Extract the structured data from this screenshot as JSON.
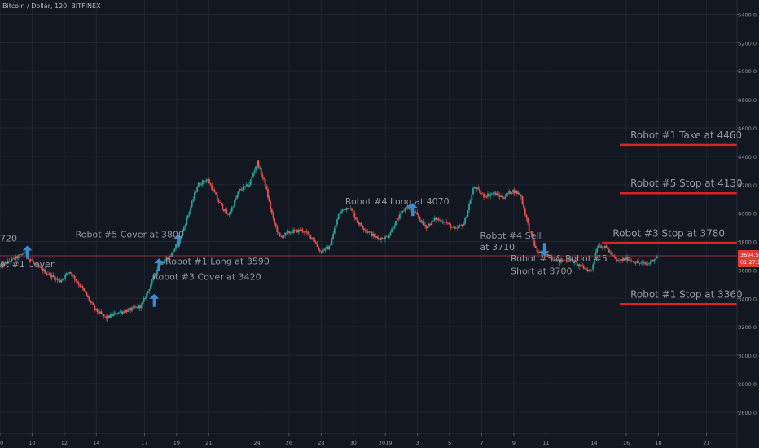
{
  "header": {
    "title": "Bitcoin / Dollar, 120, BITFINEX"
  },
  "colors": {
    "background": "#131722",
    "grid": "#1f2433",
    "up": "#26a69a",
    "down": "#ef5350",
    "level_line": "#e02020",
    "arrow": "#3d8bd0",
    "annotation": "#9598a1",
    "axis_text": "#9598a1"
  },
  "chart_data": {
    "type": "candlestick",
    "ylim": [
      2450,
      5500
    ],
    "y_ticks": [
      "5400.0",
      "5200.0",
      "5000.0",
      "4800.0",
      "4600.0",
      "4400.0",
      "4200.0",
      "4000.0",
      "3800.0",
      "3600.0",
      "3400.0",
      "3200.0",
      "3000.0",
      "2800.0",
      "2600.0"
    ],
    "y_tick_values": [
      5400,
      5200,
      5000,
      4800,
      4600,
      4400,
      4200,
      4000,
      3800,
      3600,
      3400,
      3200,
      3000,
      2800,
      2600
    ],
    "x_ticks": [
      "00",
      "10",
      "12",
      "14",
      "17",
      "19",
      "21",
      "24",
      "26",
      "28",
      "30",
      "2019",
      "3",
      "5",
      "7",
      "9",
      "11",
      "14",
      "16",
      "18",
      "21"
    ],
    "x_tick_positions": [
      8,
      10,
      12,
      14,
      17,
      19,
      21,
      24,
      26,
      28,
      30,
      32,
      34,
      36,
      38,
      40,
      42,
      45,
      47,
      49,
      52
    ],
    "x_range": [
      8,
      53.9
    ],
    "price_path": [
      [
        8,
        3620
      ],
      [
        9,
        3680
      ],
      [
        9.6,
        3720
      ],
      [
        10.2,
        3640
      ],
      [
        11,
        3580
      ],
      [
        11.8,
        3520
      ],
      [
        12.4,
        3590
      ],
      [
        13.2,
        3470
      ],
      [
        14,
        3320
      ],
      [
        14.7,
        3260
      ],
      [
        15.4,
        3300
      ],
      [
        16.2,
        3320
      ],
      [
        16.9,
        3350
      ],
      [
        17.4,
        3480
      ],
      [
        18,
        3640
      ],
      [
        18.7,
        3700
      ],
      [
        19.3,
        3820
      ],
      [
        19.8,
        3990
      ],
      [
        20.4,
        4200
      ],
      [
        21,
        4240
      ],
      [
        21.7,
        4080
      ],
      [
        22.3,
        3980
      ],
      [
        23,
        4160
      ],
      [
        23.6,
        4200
      ],
      [
        24.1,
        4360
      ],
      [
        24.6,
        4200
      ],
      [
        25.1,
        3950
      ],
      [
        25.5,
        3830
      ],
      [
        26.2,
        3870
      ],
      [
        26.9,
        3880
      ],
      [
        27.6,
        3820
      ],
      [
        28,
        3730
      ],
      [
        28.6,
        3760
      ],
      [
        29.2,
        4000
      ],
      [
        29.8,
        4050
      ],
      [
        30.4,
        3930
      ],
      [
        31,
        3870
      ],
      [
        31.6,
        3820
      ],
      [
        32.2,
        3830
      ],
      [
        32.8,
        3950
      ],
      [
        33.4,
        4050
      ],
      [
        34,
        3990
      ],
      [
        34.6,
        3900
      ],
      [
        35.2,
        3960
      ],
      [
        35.8,
        3940
      ],
      [
        36.4,
        3880
      ],
      [
        37,
        3930
      ],
      [
        37.6,
        4190
      ],
      [
        38.2,
        4120
      ],
      [
        38.8,
        4140
      ],
      [
        39.4,
        4110
      ],
      [
        40,
        4160
      ],
      [
        40.5,
        4130
      ],
      [
        41,
        3900
      ],
      [
        41.5,
        3730
      ],
      [
        42.2,
        3700
      ],
      [
        42.9,
        3660
      ],
      [
        43.6,
        3670
      ],
      [
        44.3,
        3620
      ],
      [
        44.9,
        3590
      ],
      [
        45.3,
        3780
      ],
      [
        45.9,
        3750
      ],
      [
        46.5,
        3660
      ],
      [
        47.1,
        3680
      ],
      [
        47.8,
        3650
      ],
      [
        48.4,
        3640
      ],
      [
        49,
        3694
      ]
    ],
    "current_price": {
      "value": 3694,
      "label": "3694.5",
      "countdown": "01:27:16"
    },
    "arrows": [
      {
        "x": 9.7,
        "price": 3680,
        "direction": "up"
      },
      {
        "x": 17.6,
        "price": 3340,
        "direction": "up"
      },
      {
        "x": 17.9,
        "price": 3590,
        "direction": "up"
      },
      {
        "x": 19.1,
        "price": 3760,
        "direction": "up"
      },
      {
        "x": 33.7,
        "price": 3980,
        "direction": "up"
      },
      {
        "x": 41.9,
        "price": 3790,
        "direction": "down"
      }
    ],
    "annotations": [
      {
        "text": "ot #1 Cover",
        "x": 8.0,
        "price": 3620,
        "size": 11
      },
      {
        "text": "720",
        "x": 8.0,
        "price": 3800,
        "size": 11
      },
      {
        "text": "Robot #5 Cover at 3800",
        "x": 12.7,
        "price": 3830,
        "size": 11
      },
      {
        "text": "Robot #1 Long at 3590",
        "x": 18.3,
        "price": 3640,
        "size": 11
      },
      {
        "text": "Robot #3 Cover at 3420",
        "x": 17.5,
        "price": 3530,
        "size": 11
      },
      {
        "text": "Robot #4 Long at 4070",
        "x": 29.5,
        "price": 4060,
        "size": 11
      },
      {
        "text": "Robot #4 Sell",
        "x": 37.9,
        "price": 3820,
        "size": 11
      },
      {
        "text": "at 3710",
        "x": 37.9,
        "price": 3740,
        "size": 11
      },
      {
        "text": "Robot #3 & Robot #5",
        "x": 39.8,
        "price": 3660,
        "size": 11
      },
      {
        "text": "Short at 3700",
        "x": 39.8,
        "price": 3570,
        "size": 11
      }
    ],
    "levels": [
      {
        "label": "Robot #1 Take at 4460",
        "price": 4480,
        "x_start": 46.6,
        "style": "thick"
      },
      {
        "label": "Robot #5 Stop at 4130",
        "price": 4140,
        "x_start": 46.6,
        "style": "thick"
      },
      {
        "label": "Robot #3 Stop at 3780",
        "price": 3790,
        "x_start": 45.5,
        "style": "thick"
      },
      {
        "label": "Robot #1 Stop at 3360",
        "price": 3360,
        "x_start": 46.6,
        "style": "thick"
      },
      {
        "label": "",
        "price": 3700,
        "x_start": 8,
        "style": "thin"
      }
    ]
  }
}
